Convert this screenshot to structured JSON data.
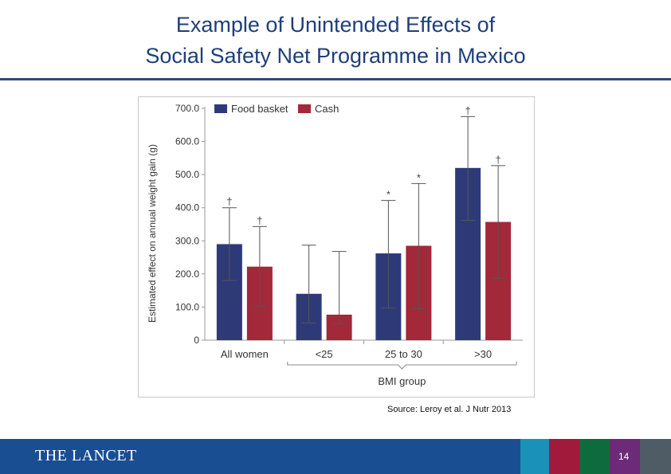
{
  "title": {
    "line1": "Example of Unintended Effects of",
    "line2": "Social Safety Net Programme in Mexico"
  },
  "source": "Source: Leroy et al. J Nutr 2013",
  "footer": {
    "brand": "THE LANCET",
    "page_number": "14",
    "color_strip": [
      "#1a91b8",
      "#a11a3c",
      "#0d6b3d",
      "#6c2a78",
      "#4f5c66"
    ]
  },
  "chart_data": {
    "type": "bar",
    "ylabel": "Estimated effect on annual weight gain (g)",
    "xlabel": "BMI group",
    "ylim": [
      0,
      700
    ],
    "yticks": [
      "0",
      "100.0",
      "200.0",
      "300.0",
      "400.0",
      "500.0",
      "600.0",
      "700.0"
    ],
    "categories": [
      "All women",
      "<25",
      "25 to 30",
      ">30"
    ],
    "legend_position": "top-left",
    "bracket_categories": [
      "<25",
      "25 to 30",
      ">30"
    ],
    "series": [
      {
        "name": "Food basket",
        "color": "#2e3a78",
        "values": [
          290,
          140,
          262,
          520
        ],
        "error_low": [
          180,
          52,
          97,
          362
        ],
        "error_high": [
          400,
          287,
          422,
          675
        ],
        "markers": [
          "†",
          "",
          "*",
          "†"
        ]
      },
      {
        "name": "Cash",
        "color": "#a3283a",
        "values": [
          222,
          77,
          285,
          357
        ],
        "error_low": [
          103,
          50,
          95,
          187
        ],
        "error_high": [
          343,
          268,
          473,
          527
        ],
        "markers": [
          "†",
          "",
          "*",
          "†"
        ]
      }
    ]
  }
}
